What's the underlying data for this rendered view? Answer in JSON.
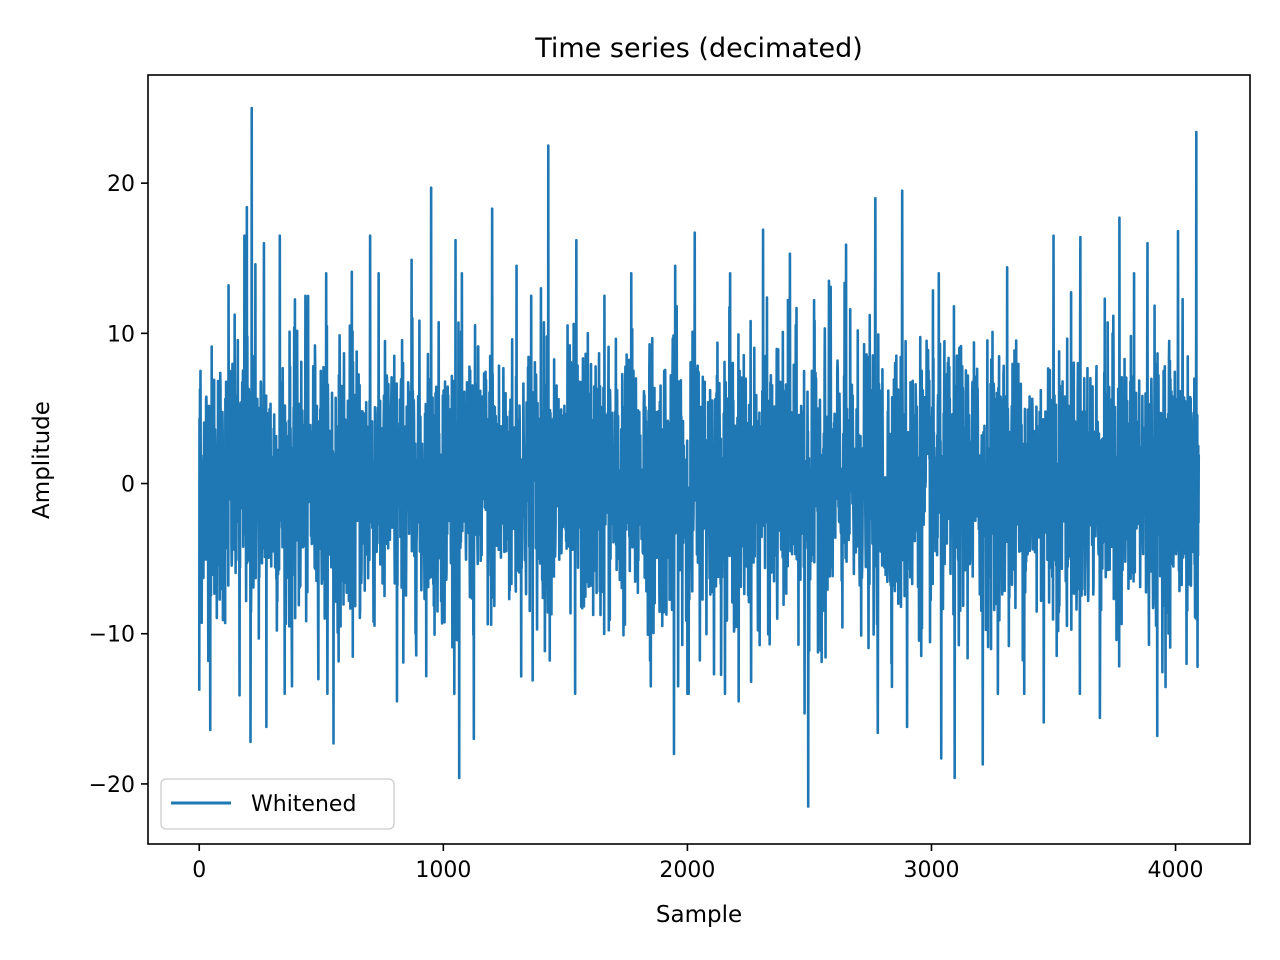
{
  "chart_data": {
    "type": "line",
    "title": "Time series (decimated)",
    "xlabel": "Sample",
    "ylabel": "Amplitude",
    "xlim": [
      -210,
      4305
    ],
    "ylim": [
      -24,
      27.2
    ],
    "xticks": [
      0,
      1000,
      2000,
      3000,
      4000
    ],
    "xtick_labels": [
      "0",
      "1000",
      "2000",
      "3000",
      "4000"
    ],
    "yticks": [
      -20,
      -10,
      0,
      10,
      20
    ],
    "ytick_labels": [
      "−20",
      "−10",
      "0",
      "10",
      "20"
    ],
    "grid": false,
    "legend_position": "lower-left",
    "series": [
      {
        "name": "Whitened",
        "color": "#1f77b4",
        "n_samples": 4096,
        "x_start": 0,
        "x_end": 4095,
        "typical_std": 4.5,
        "notable_points": [
          {
            "x": 0,
            "y": -13.8
          },
          {
            "x": 5,
            "y": 7.5
          },
          {
            "x": 45,
            "y": -16.4
          },
          {
            "x": 120,
            "y": 13.2
          },
          {
            "x": 165,
            "y": -14.1
          },
          {
            "x": 185,
            "y": 16.5
          },
          {
            "x": 195,
            "y": 18.4
          },
          {
            "x": 210,
            "y": -17.2
          },
          {
            "x": 215,
            "y": 25.0
          },
          {
            "x": 230,
            "y": 14.6
          },
          {
            "x": 265,
            "y": 16.0
          },
          {
            "x": 275,
            "y": -16.2
          },
          {
            "x": 330,
            "y": 16.5
          },
          {
            "x": 380,
            "y": -13.5
          },
          {
            "x": 435,
            "y": 12.5
          },
          {
            "x": 520,
            "y": 14.0
          },
          {
            "x": 550,
            "y": -17.3
          },
          {
            "x": 625,
            "y": 14.1
          },
          {
            "x": 700,
            "y": 16.5
          },
          {
            "x": 810,
            "y": -14.5
          },
          {
            "x": 870,
            "y": 14.9
          },
          {
            "x": 950,
            "y": 19.7
          },
          {
            "x": 1050,
            "y": 16.2
          },
          {
            "x": 1065,
            "y": -19.6
          },
          {
            "x": 1125,
            "y": -17.0
          },
          {
            "x": 1200,
            "y": 18.3
          },
          {
            "x": 1300,
            "y": 14.5
          },
          {
            "x": 1360,
            "y": 12.5
          },
          {
            "x": 1400,
            "y": 13.0
          },
          {
            "x": 1430,
            "y": 22.5
          },
          {
            "x": 1540,
            "y": -14.0
          },
          {
            "x": 1545,
            "y": 16.2
          },
          {
            "x": 1660,
            "y": 12.5
          },
          {
            "x": 1770,
            "y": 14.0
          },
          {
            "x": 1850,
            "y": -13.5
          },
          {
            "x": 1945,
            "y": -18.0
          },
          {
            "x": 1950,
            "y": 14.5
          },
          {
            "x": 2000,
            "y": -14.0
          },
          {
            "x": 2030,
            "y": 16.7
          },
          {
            "x": 2175,
            "y": 14.0
          },
          {
            "x": 2210,
            "y": -14.5
          },
          {
            "x": 2310,
            "y": 16.9
          },
          {
            "x": 2420,
            "y": 15.3
          },
          {
            "x": 2480,
            "y": -15.3
          },
          {
            "x": 2495,
            "y": -21.5
          },
          {
            "x": 2580,
            "y": 13.5
          },
          {
            "x": 2650,
            "y": 15.9
          },
          {
            "x": 2770,
            "y": 19.0
          },
          {
            "x": 2780,
            "y": -16.6
          },
          {
            "x": 2880,
            "y": 19.5
          },
          {
            "x": 2900,
            "y": -16.2
          },
          {
            "x": 3030,
            "y": 14.0
          },
          {
            "x": 3040,
            "y": -18.3
          },
          {
            "x": 3095,
            "y": -19.6
          },
          {
            "x": 3210,
            "y": -18.7
          },
          {
            "x": 3310,
            "y": 14.4
          },
          {
            "x": 3380,
            "y": -14.0
          },
          {
            "x": 3460,
            "y": -15.9
          },
          {
            "x": 3500,
            "y": 16.5
          },
          {
            "x": 3610,
            "y": 16.4
          },
          {
            "x": 3690,
            "y": -15.6
          },
          {
            "x": 3770,
            "y": 17.7
          },
          {
            "x": 3830,
            "y": 14.0
          },
          {
            "x": 3885,
            "y": 16.0
          },
          {
            "x": 3925,
            "y": -16.8
          },
          {
            "x": 4010,
            "y": 16.8
          },
          {
            "x": 4045,
            "y": -12.0
          },
          {
            "x": 4085,
            "y": 23.4
          },
          {
            "x": 4090,
            "y": -12.2
          }
        ]
      }
    ]
  }
}
